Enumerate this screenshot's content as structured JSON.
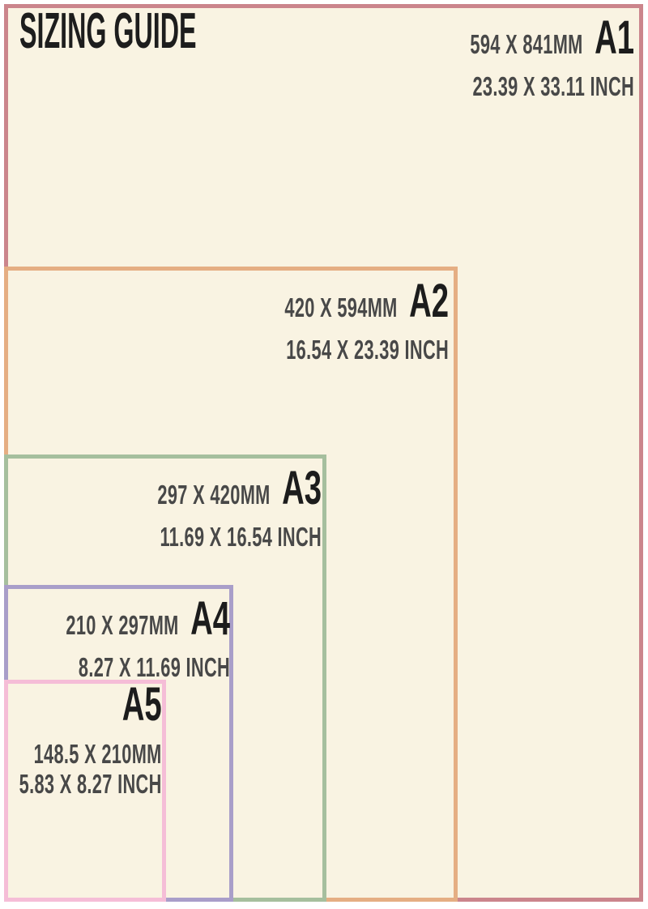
{
  "title": "SIZING GUIDE",
  "colors": {
    "page_margin": "#ffffff",
    "paper": "#f9f3e2",
    "title_text": "#1d1d1d",
    "code_text": "#1c1c1c",
    "dimension_text": "#484848"
  },
  "sizes": [
    {
      "code": "A1",
      "mm": "594 X 841MM",
      "inch": "23.39 X 33.11 INCH",
      "border_color": "#cb858c"
    },
    {
      "code": "A2",
      "mm": "420 X 594MM",
      "inch": "16.54 X 23.39 INCH",
      "border_color": "#e5ae83"
    },
    {
      "code": "A3",
      "mm": "297 X 420MM",
      "inch": "11.69 X 16.54 INCH",
      "border_color": "#a6bf9e"
    },
    {
      "code": "A4",
      "mm": "210 X 297MM",
      "inch": "8.27 X 11.69 INCH",
      "border_color": "#a99ec9"
    },
    {
      "code": "A5",
      "mm": "148.5 X 210MM",
      "inch": "5.83 X 8.27 INCH",
      "border_color": "#f5bdd7"
    }
  ]
}
